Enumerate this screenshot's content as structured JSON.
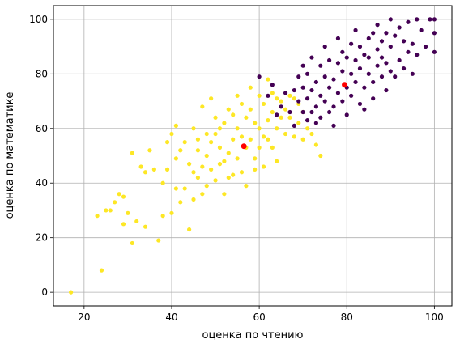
{
  "chart_data": {
    "type": "scatter",
    "xlabel": "оценка по чтению",
    "ylabel": "оценка по математике",
    "xlim": [
      13,
      104
    ],
    "ylim": [
      -5,
      105
    ],
    "xticks": [
      20,
      40,
      60,
      80,
      100
    ],
    "yticks": [
      0,
      20,
      40,
      60,
      80,
      100
    ],
    "grid": true,
    "colors": {
      "cluster_high": "#440154",
      "cluster_low": "#fde725",
      "centroid": "#ff0000"
    },
    "series": [
      {
        "color": "#fde725",
        "x": [
          17,
          23,
          24,
          25,
          26,
          27,
          28,
          29,
          29,
          30,
          31,
          31,
          32,
          33,
          34,
          34,
          35,
          36,
          37,
          38,
          38,
          39,
          39,
          40,
          40,
          41,
          41,
          41,
          42,
          42,
          43,
          43,
          44,
          44,
          45,
          45,
          45,
          46,
          46,
          46,
          47,
          47,
          47,
          48,
          48,
          48,
          49,
          49,
          49,
          50,
          50,
          50,
          51,
          51,
          51,
          52,
          52,
          52,
          53,
          53,
          53,
          54,
          54,
          54,
          55,
          55,
          55,
          56,
          56,
          56,
          57,
          57,
          57,
          58,
          58,
          58,
          59,
          59,
          59,
          60,
          60,
          60,
          61,
          61,
          61,
          62,
          62,
          62,
          63,
          63,
          63,
          64,
          64,
          64,
          65,
          65,
          66,
          66,
          67,
          67,
          68,
          68,
          69,
          69,
          70,
          70,
          71,
          72,
          73,
          74
        ],
        "y": [
          0,
          28,
          8,
          30,
          30,
          33,
          36,
          25,
          35,
          29,
          51,
          18,
          26,
          46,
          44,
          24,
          52,
          45,
          19,
          40,
          28,
          55,
          45,
          58,
          29,
          61,
          38,
          49,
          33,
          52,
          55,
          38,
          47,
          23,
          60,
          44,
          34,
          52,
          42,
          56,
          68,
          46,
          36,
          58,
          39,
          50,
          71,
          45,
          55,
          64,
          41,
          58,
          53,
          60,
          47,
          62,
          48,
          36,
          67,
          51,
          42,
          65,
          56,
          43,
          72,
          60,
          49,
          69,
          57,
          44,
          64,
          53,
          39,
          75,
          67,
          56,
          62,
          49,
          45,
          72,
          60,
          53,
          69,
          57,
          46,
          78,
          63,
          56,
          73,
          66,
          53,
          71,
          60,
          48,
          70,
          64,
          67,
          58,
          72,
          64,
          71,
          57,
          69,
          62,
          66,
          56,
          60,
          58,
          54,
          50
        ]
      },
      {
        "color": "#440154",
        "x": [
          60,
          62,
          63,
          64,
          65,
          66,
          67,
          68,
          68,
          69,
          69,
          70,
          70,
          70,
          71,
          71,
          71,
          72,
          72,
          72,
          73,
          73,
          73,
          74,
          74,
          74,
          75,
          75,
          75,
          76,
          76,
          76,
          77,
          77,
          77,
          78,
          78,
          78,
          79,
          79,
          79,
          80,
          80,
          80,
          81,
          81,
          81,
          82,
          82,
          82,
          83,
          83,
          83,
          84,
          84,
          84,
          85,
          85,
          85,
          86,
          86,
          86,
          87,
          87,
          87,
          88,
          88,
          88,
          89,
          89,
          89,
          90,
          90,
          90,
          91,
          91,
          92,
          92,
          93,
          93,
          94,
          94,
          95,
          95,
          96,
          96,
          97,
          98,
          99,
          100,
          100,
          100
        ],
        "y": [
          79,
          72,
          76,
          65,
          68,
          73,
          66,
          74,
          61,
          70,
          79,
          66,
          75,
          83,
          63,
          71,
          80,
          66,
          74,
          86,
          62,
          77,
          68,
          64,
          72,
          83,
          70,
          79,
          90,
          66,
          75,
          85,
          68,
          78,
          61,
          73,
          84,
          93,
          70,
          81,
          88,
          75,
          86,
          65,
          72,
          80,
          91,
          77,
          85,
          96,
          69,
          82,
          90,
          75,
          87,
          67,
          80,
          93,
          86,
          77,
          95,
          71,
          83,
          89,
          98,
          79,
          86,
          92,
          74,
          84,
          95,
          81,
          90,
          100,
          79,
          94,
          85,
          97,
          82,
          92,
          88,
          99,
          80,
          91,
          87,
          100,
          96,
          90,
          100,
          95,
          88,
          100
        ]
      },
      {
        "color": "#ff0000",
        "x": [
          56.5,
          79.5
        ],
        "y": [
          53.5,
          76
        ]
      }
    ]
  }
}
